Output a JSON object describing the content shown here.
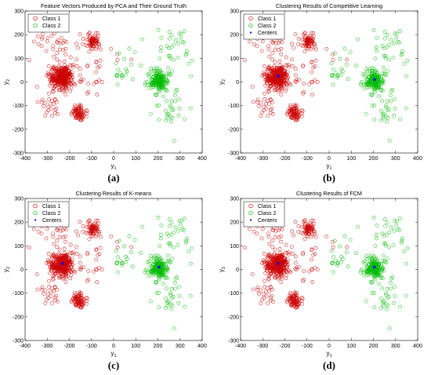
{
  "figure": {
    "panels": [
      {
        "label": "(a)",
        "title": "Feature Vectors Produced by PCA and Their Ground Truth",
        "legend": [
          "Class 1",
          "Class 2"
        ],
        "show_centers": false
      },
      {
        "label": "(b)",
        "title": "Clustering Results of Competitive Learning",
        "legend": [
          "Class 1",
          "Class 2",
          "Centers"
        ],
        "show_centers": true
      },
      {
        "label": "(c)",
        "title": "Clustering Results of K-means",
        "legend": [
          "Class 1",
          "Class 2",
          "Centers"
        ],
        "show_centers": true
      },
      {
        "label": "(d)",
        "title": "Clustering Results of FCM",
        "legend": [
          "Class 1",
          "Class 2",
          "Centers"
        ],
        "show_centers": true
      }
    ]
  },
  "chart_data": [
    {
      "type": "scatter",
      "title": "Feature Vectors Produced by PCA and Their Ground Truth",
      "xlabel": "y1",
      "ylabel": "y2",
      "xlim": [
        -400,
        400
      ],
      "ylim": [
        -300,
        300
      ],
      "xticks": [
        -400,
        -300,
        -200,
        -100,
        0,
        100,
        200,
        300,
        400
      ],
      "yticks": [
        -300,
        -200,
        -100,
        0,
        100,
        200,
        300
      ],
      "series": [
        {
          "name": "Class 1",
          "color": "#cc0000",
          "marker": "circle",
          "clusters": [
            {
              "cx": -235,
              "cy": 20,
              "sx": 26,
              "sy": 24,
              "n": 320
            },
            {
              "cx": -155,
              "cy": -130,
              "sx": 17,
              "sy": 14,
              "n": 80
            },
            {
              "cx": -95,
              "cy": 170,
              "sx": 17,
              "sy": 16,
              "n": 70
            },
            {
              "cx": -260,
              "cy": 160,
              "sx": 55,
              "sy": 40,
              "n": 40
            },
            {
              "cx": -280,
              "cy": -90,
              "sx": 35,
              "sy": 30,
              "n": 25
            },
            {
              "cx": -100,
              "cy": 20,
              "sx": 60,
              "sy": 50,
              "n": 30
            }
          ]
        },
        {
          "name": "Class 2",
          "color": "#00bb00",
          "marker": "circle",
          "clusters": [
            {
              "cx": 205,
              "cy": 5,
              "sx": 20,
              "sy": 25,
              "n": 180
            },
            {
              "cx": 285,
              "cy": 150,
              "sx": 35,
              "sy": 45,
              "n": 30
            },
            {
              "cx": 260,
              "cy": -110,
              "sx": 40,
              "sy": 45,
              "n": 30
            },
            {
              "cx": 20,
              "cy": 40,
              "sx": 20,
              "sy": 30,
              "n": 12
            },
            {
              "cx": 120,
              "cy": 100,
              "sx": 50,
              "sy": 50,
              "n": 10
            }
          ]
        }
      ],
      "centers": []
    },
    {
      "type": "scatter",
      "title": "Clustering Results of Competitive Learning",
      "xlabel": "y1",
      "ylabel": "y2",
      "xlim": [
        -400,
        400
      ],
      "ylim": [
        -300,
        300
      ],
      "xticks": [
        -400,
        -300,
        -200,
        -100,
        0,
        100,
        200,
        300,
        400
      ],
      "yticks": [
        -300,
        -200,
        -100,
        0,
        100,
        200,
        300
      ],
      "series": [
        {
          "name": "Class 1",
          "color": "#cc0000",
          "marker": "circle",
          "clusters": [
            {
              "cx": -235,
              "cy": 20,
              "sx": 26,
              "sy": 24,
              "n": 320
            },
            {
              "cx": -155,
              "cy": -130,
              "sx": 17,
              "sy": 14,
              "n": 80
            },
            {
              "cx": -95,
              "cy": 170,
              "sx": 17,
              "sy": 16,
              "n": 70
            },
            {
              "cx": -260,
              "cy": 160,
              "sx": 55,
              "sy": 40,
              "n": 40
            },
            {
              "cx": -280,
              "cy": -90,
              "sx": 35,
              "sy": 30,
              "n": 25
            },
            {
              "cx": -100,
              "cy": 20,
              "sx": 60,
              "sy": 50,
              "n": 30
            }
          ]
        },
        {
          "name": "Class 2",
          "color": "#00bb00",
          "marker": "circle",
          "clusters": [
            {
              "cx": 205,
              "cy": 5,
              "sx": 20,
              "sy": 25,
              "n": 180
            },
            {
              "cx": 285,
              "cy": 150,
              "sx": 35,
              "sy": 45,
              "n": 30
            },
            {
              "cx": 260,
              "cy": -110,
              "sx": 40,
              "sy": 45,
              "n": 30
            },
            {
              "cx": 20,
              "cy": 40,
              "sx": 20,
              "sy": 30,
              "n": 12
            },
            {
              "cx": 120,
              "cy": 100,
              "sx": 50,
              "sy": 50,
              "n": 10
            }
          ]
        }
      ],
      "centers": [
        {
          "x": -230,
          "y": 25
        },
        {
          "x": 205,
          "y": 10
        }
      ]
    },
    {
      "type": "scatter",
      "title": "Clustering Results of K-means",
      "xlabel": "y1",
      "ylabel": "y2",
      "xlim": [
        -400,
        400
      ],
      "ylim": [
        -300,
        300
      ],
      "xticks": [
        -400,
        -300,
        -200,
        -100,
        0,
        100,
        200,
        300,
        400
      ],
      "yticks": [
        -300,
        -200,
        -100,
        0,
        100,
        200,
        300
      ],
      "series": [
        {
          "name": "Class 1",
          "color": "#cc0000",
          "marker": "circle",
          "clusters": [
            {
              "cx": -235,
              "cy": 20,
              "sx": 26,
              "sy": 24,
              "n": 320
            },
            {
              "cx": -155,
              "cy": -130,
              "sx": 17,
              "sy": 14,
              "n": 80
            },
            {
              "cx": -95,
              "cy": 170,
              "sx": 17,
              "sy": 16,
              "n": 70
            },
            {
              "cx": -260,
              "cy": 160,
              "sx": 55,
              "sy": 40,
              "n": 40
            },
            {
              "cx": -280,
              "cy": -90,
              "sx": 35,
              "sy": 30,
              "n": 25
            },
            {
              "cx": -100,
              "cy": 20,
              "sx": 60,
              "sy": 50,
              "n": 30
            }
          ]
        },
        {
          "name": "Class 2",
          "color": "#00bb00",
          "marker": "circle",
          "clusters": [
            {
              "cx": 205,
              "cy": 5,
              "sx": 20,
              "sy": 25,
              "n": 180
            },
            {
              "cx": 285,
              "cy": 150,
              "sx": 35,
              "sy": 45,
              "n": 30
            },
            {
              "cx": 260,
              "cy": -110,
              "sx": 40,
              "sy": 45,
              "n": 30
            },
            {
              "cx": 20,
              "cy": 40,
              "sx": 20,
              "sy": 30,
              "n": 12
            },
            {
              "cx": 120,
              "cy": 100,
              "sx": 50,
              "sy": 50,
              "n": 10
            }
          ]
        }
      ],
      "centers": [
        {
          "x": -230,
          "y": 25
        },
        {
          "x": 205,
          "y": 10
        }
      ]
    },
    {
      "type": "scatter",
      "title": "Clustering Results of FCM",
      "xlabel": "y1",
      "ylabel": "y2",
      "xlim": [
        -400,
        400
      ],
      "ylim": [
        -300,
        300
      ],
      "xticks": [
        -400,
        -300,
        -200,
        -100,
        0,
        100,
        200,
        300,
        400
      ],
      "yticks": [
        -300,
        -200,
        -100,
        0,
        100,
        200,
        300
      ],
      "series": [
        {
          "name": "Class 1",
          "color": "#cc0000",
          "marker": "circle",
          "clusters": [
            {
              "cx": -235,
              "cy": 20,
              "sx": 26,
              "sy": 24,
              "n": 320
            },
            {
              "cx": -155,
              "cy": -130,
              "sx": 17,
              "sy": 14,
              "n": 80
            },
            {
              "cx": -95,
              "cy": 170,
              "sx": 17,
              "sy": 16,
              "n": 70
            },
            {
              "cx": -260,
              "cy": 160,
              "sx": 55,
              "sy": 40,
              "n": 40
            },
            {
              "cx": -280,
              "cy": -90,
              "sx": 35,
              "sy": 30,
              "n": 25
            },
            {
              "cx": -100,
              "cy": 20,
              "sx": 60,
              "sy": 50,
              "n": 30
            }
          ]
        },
        {
          "name": "Class 2",
          "color": "#00bb00",
          "marker": "circle",
          "clusters": [
            {
              "cx": 205,
              "cy": 5,
              "sx": 20,
              "sy": 25,
              "n": 180
            },
            {
              "cx": 285,
              "cy": 150,
              "sx": 35,
              "sy": 45,
              "n": 30
            },
            {
              "cx": 260,
              "cy": -110,
              "sx": 40,
              "sy": 45,
              "n": 30
            },
            {
              "cx": 20,
              "cy": 40,
              "sx": 20,
              "sy": 30,
              "n": 12
            },
            {
              "cx": 120,
              "cy": 100,
              "sx": 50,
              "sy": 50,
              "n": 10
            }
          ]
        }
      ],
      "centers": [
        {
          "x": -230,
          "y": 25
        },
        {
          "x": 205,
          "y": 10
        }
      ]
    }
  ]
}
